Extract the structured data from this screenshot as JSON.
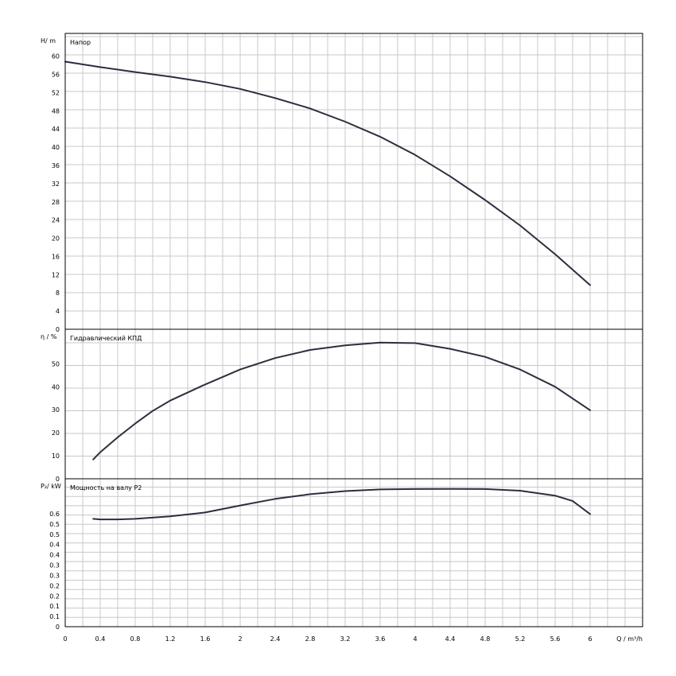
{
  "chart_data": [
    {
      "type": "line",
      "title": "Напор",
      "ylabel": "H/ m",
      "xlabel": "Q / m³/h",
      "xlim": [
        0,
        6.6
      ],
      "ylim": [
        0,
        65
      ],
      "grid": true,
      "yticks": [
        0,
        4,
        8,
        12,
        16,
        20,
        24,
        28,
        32,
        36,
        40,
        44,
        48,
        52,
        56,
        60
      ],
      "yticklabels": [
        "0",
        "4",
        "8",
        "12",
        "16",
        "20",
        "24",
        "28",
        "32",
        "36",
        "40",
        "44",
        "48",
        "52",
        "56",
        "60"
      ],
      "series": [
        {
          "x": [
            0,
            0.4,
            0.8,
            1.2,
            1.6,
            2.0,
            2.4,
            2.8,
            3.2,
            3.6,
            4.0,
            4.4,
            4.8,
            5.2,
            5.6,
            6.0
          ],
          "y": [
            58.8,
            57.6,
            56.5,
            55.5,
            54.3,
            52.8,
            50.8,
            48.5,
            45.6,
            42.3,
            38.3,
            33.6,
            28.4,
            22.8,
            16.5,
            9.7
          ]
        }
      ]
    },
    {
      "type": "line",
      "title": "Гидравлический КПД",
      "ylabel": "η / %",
      "xlim": [
        0,
        6.6
      ],
      "ylim": [
        0,
        65
      ],
      "grid": true,
      "yticks": [
        0,
        10,
        20,
        30,
        40,
        50
      ],
      "yticklabels": [
        "0",
        "10",
        "20",
        "30",
        "40",
        "50"
      ],
      "series": [
        {
          "x": [
            0.32,
            0.4,
            0.6,
            0.8,
            1.0,
            1.2,
            1.6,
            2.0,
            2.4,
            2.8,
            3.2,
            3.6,
            4.0,
            4.4,
            4.8,
            5.2,
            5.6,
            6.0
          ],
          "y": [
            8.4,
            11.5,
            18.0,
            24.0,
            29.5,
            34.0,
            41.0,
            47.5,
            52.5,
            56.0,
            58.0,
            59.2,
            59.0,
            56.5,
            53.0,
            47.5,
            40.0,
            29.8
          ]
        }
      ]
    },
    {
      "type": "line",
      "title": "Мощность на валу P2",
      "ylabel": "P₂/ kW",
      "xlim": [
        0,
        6.6
      ],
      "ylim": [
        0,
        0.72
      ],
      "grid": true,
      "yticks": [
        0,
        0.05,
        0.1,
        0.15,
        0.2,
        0.25,
        0.3,
        0.35,
        0.4,
        0.45,
        0.5,
        0.55
      ],
      "yticklabels": [
        "0",
        "0.1",
        "0.1",
        "0.2",
        "0.2",
        "0.3",
        "0.3",
        "0.4",
        "0.4",
        "0.5",
        "0.5",
        "0.6"
      ],
      "xticks": [
        0,
        0.4,
        0.8,
        1.2,
        1.6,
        2.0,
        2.4,
        2.8,
        3.2,
        3.6,
        4.0,
        4.4,
        4.8,
        5.2,
        5.6,
        6.0
      ],
      "xticklabels": [
        "0",
        "0.4",
        "0.8",
        "1.2",
        "1.6",
        "2",
        "2.4",
        "2.8",
        "3.2",
        "3.6",
        "4",
        "4.4",
        "4.8",
        "5.2",
        "5.6",
        "6"
      ],
      "series": [
        {
          "x": [
            0.32,
            0.4,
            0.6,
            0.8,
            1.2,
            1.6,
            2.0,
            2.4,
            2.8,
            3.2,
            3.6,
            4.0,
            4.4,
            4.8,
            5.2,
            5.6,
            5.8,
            6.0
          ],
          "y": [
            0.525,
            0.522,
            0.522,
            0.525,
            0.537,
            0.556,
            0.59,
            0.622,
            0.645,
            0.66,
            0.668,
            0.67,
            0.671,
            0.67,
            0.662,
            0.638,
            0.612,
            0.548
          ]
        }
      ]
    }
  ]
}
